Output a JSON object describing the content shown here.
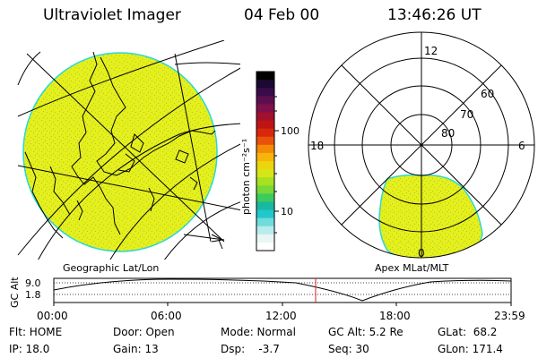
{
  "header": {
    "instrument": "Ultraviolet Imager",
    "date": "04 Feb 00",
    "time": "13:46:26 UT"
  },
  "colors": {
    "emission": "#e6ee1c",
    "emission_speckle": "#98d632",
    "edge": "#2ad8d8",
    "time_marker": "#e0201c"
  },
  "geo_panel": {
    "label": "Geographic Lat/Lon"
  },
  "polar_panel": {
    "label": "Apex MLat/MLT",
    "mlt_labels": {
      "top": "12",
      "left": "18",
      "right": "6",
      "bottom": "0"
    },
    "lat_labels": [
      "60",
      "70",
      "80"
    ]
  },
  "colorbar": {
    "unit_label": "photon cm⁻²s⁻¹",
    "ticks": [
      "100",
      "10"
    ],
    "colors": [
      "#000000",
      "#1a0930",
      "#3a0b4a",
      "#5c0f4e",
      "#80104a",
      "#a1102f",
      "#c01414",
      "#d8280c",
      "#e8520a",
      "#f58a06",
      "#f7b40a",
      "#ecd40e",
      "#d4e618",
      "#a8e022",
      "#78d836",
      "#3ccc5c",
      "#1ab8a0",
      "#20c8cc",
      "#70dcdc",
      "#b8ecec",
      "#e8f6f6",
      "#ffffff"
    ]
  },
  "timeline": {
    "axis_label": "GC Alt",
    "y_ticks": [
      "9.0",
      "1.8"
    ],
    "x_ticks": [
      "00:00",
      "06:00",
      "12:00",
      "18:00",
      "23:59"
    ],
    "marker_time": "13:46:26"
  },
  "status": {
    "flt": "Flt: HOME",
    "ip": "IP: 18.0",
    "door": "Door: Open",
    "gain": "Gain: 13",
    "mode": "Mode: Normal",
    "dsp": "Dsp:    -3.7",
    "gcalt": "GC Alt: 5.2 Re",
    "seq": "Seq: 30",
    "glat": "GLat:  68.2",
    "glon": "GLon: 171.4"
  }
}
